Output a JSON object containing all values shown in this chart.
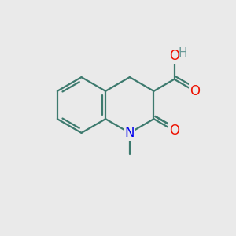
{
  "background_color": "#eaeaea",
  "bond_color": "#3d7a6e",
  "bond_width": 1.6,
  "n_color": "#0000ee",
  "o_color": "#ee1100",
  "h_color": "#6a9a98",
  "font_size_atom": 11.5,
  "fig_size": [
    3.0,
    3.0
  ],
  "dpi": 100,
  "xlim": [
    0,
    10
  ],
  "ylim": [
    0,
    10
  ]
}
